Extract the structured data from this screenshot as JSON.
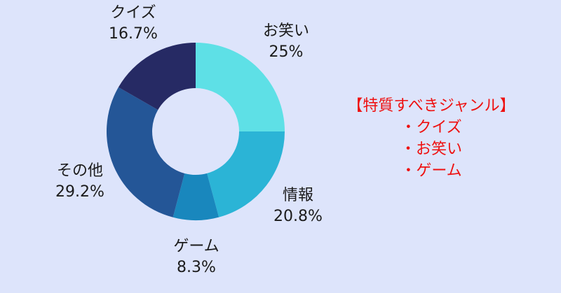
{
  "chart_data": {
    "type": "pie",
    "variant": "donut",
    "title": "",
    "categories": [
      "お笑い",
      "情報",
      "ゲーム",
      "その他",
      "クイズ"
    ],
    "values": [
      25,
      20.8,
      8.3,
      29.2,
      16.7
    ],
    "value_labels": [
      "25%",
      "20.8%",
      "8.3%",
      "29.2%",
      "16.7%"
    ],
    "colors": [
      "#5ee0e6",
      "#2bb4d6",
      "#1987bd",
      "#245697",
      "#262a64"
    ],
    "start_angle_deg": 0,
    "direction": "clockwise",
    "legend": "none"
  },
  "note": {
    "heading": "【特質すべきジャンル】",
    "items": [
      "・クイズ",
      "・お笑い",
      "・ゲーム"
    ],
    "color": "#ee1111"
  }
}
